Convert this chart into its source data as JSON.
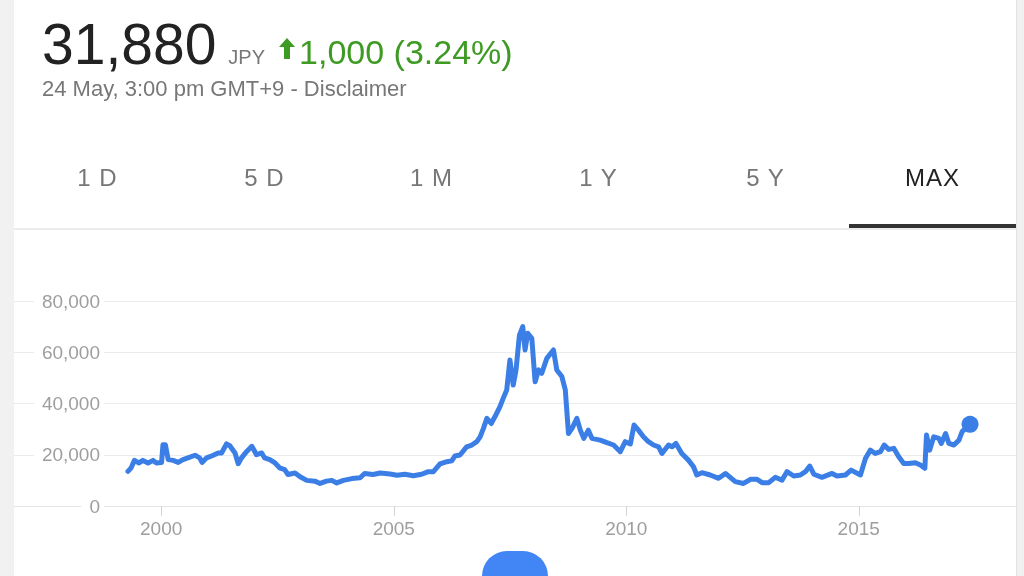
{
  "chart_data": {
    "type": "line",
    "title": "31,880",
    "subtitle": "24 May, 3:00 pm GMT+9 - Disclaimer",
    "annotations": [
      "JPY",
      "1,000 (3.24%)",
      "1 D",
      "5 D",
      "1 M",
      "1 Y",
      "5 Y",
      "MAX"
    ],
    "xlim": [
      "1996-11-01",
      "2018-05-20"
    ],
    "xticks": [
      "2000",
      "2005",
      "2010",
      "2015"
    ],
    "ylim": [
      0,
      80000
    ],
    "yticks": [
      0,
      {
        "value": 20000,
        "label": "20,000"
      },
      {
        "value": 40000,
        "label": "40,000"
      },
      {
        "value": 60000,
        "label": "60,000"
      },
      {
        "value": 80000,
        "label": "80,000"
      }
    ],
    "grid": "y",
    "series": [
      {
        "color": "#3b7fe6",
        "x": [
          "1999-04-15",
          "1999-05-10",
          "1999-06-05",
          "1999-07-11",
          "1999-08-10",
          "1999-09-20",
          "1999-10-29",
          "1999-11-25",
          "2000-01-04",
          "2000-01-15",
          "2000-02-03",
          "2000-02-25",
          "2000-04-04",
          "2000-05-14",
          "2000-06-20",
          "2000-07-29",
          "2000-09-23",
          "2000-10-29",
          "2000-11-17",
          "2000-12-23",
          "2001-02-14",
          "2001-03-23",
          "2001-04-19",
          "2001-05-28",
          "2001-06-23",
          "2001-08-03",
          "2001-08-28",
          "2001-09-23",
          "2001-11-03",
          "2001-12-13",
          "2002-01-19",
          "2002-02-28",
          "2002-03-23",
          "2002-05-03",
          "2002-06-13",
          "2002-07-19",
          "2002-08-28",
          "2002-09-23",
          "2002-11-17",
          "2002-12-27",
          "2003-02-17",
          "2003-04-22",
          "2003-06-02",
          "2003-07-22",
          "2003-09-02",
          "2003-10-11",
          "2003-12-02",
          "2004-02-07",
          "2004-04-11",
          "2004-05-17",
          "2004-07-22",
          "2004-09-16",
          "2004-12-02",
          "2005-01-26",
          "2005-03-29",
          "2005-06-03",
          "2005-08-08",
          "2005-09-29",
          "2005-11-08",
          "2005-12-30",
          "2006-02-22",
          "2006-04-01",
          "2006-04-26",
          "2006-06-05",
          "2006-07-27",
          "2006-09-06",
          "2006-10-15",
          "2006-11-10",
          "2006-12-06",
          "2007-01-02",
          "2007-02-05",
          "2007-03-07",
          "2007-04-15",
          "2007-05-10",
          "2007-06-07",
          "2007-07-02",
          "2007-07-28",
          "2007-08-19",
          "2007-09-15",
          "2007-10-11",
          "2007-10-29",
          "2007-11-19",
          "2007-12-21",
          "2008-01-16",
          "2008-02-12",
          "2008-03-08",
          "2008-04-17",
          "2008-06-08",
          "2008-07-04",
          "2008-08-13",
          "2008-09-09",
          "2008-10-04",
          "2008-11-01",
          "2008-12-09",
          "2009-01-05",
          "2009-02-01",
          "2009-03-09",
          "2009-04-06",
          "2009-06-10",
          "2009-08-02",
          "2009-09-23",
          "2009-11-15",
          "2009-12-24",
          "2010-02-02",
          "2010-03-03",
          "2010-04-07",
          "2010-05-16",
          "2010-06-24",
          "2010-08-03",
          "2010-09-12",
          "2010-10-08",
          "2010-11-29",
          "2010-12-26",
          "2011-01-26",
          "2011-03-13",
          "2011-05-04",
          "2011-06-13",
          "2011-07-09",
          "2011-08-18",
          "2011-10-22",
          "2011-12-27",
          "2012-02-19",
          "2012-05-06",
          "2012-07-10",
          "2012-09-02",
          "2012-10-24",
          "2012-12-03",
          "2013-01-24",
          "2013-03-16",
          "2013-05-08",
          "2013-06-16",
          "2013-08-08",
          "2013-09-29",
          "2013-11-08",
          "2013-12-12",
          "2014-01-13",
          "2014-03-18",
          "2014-06-05",
          "2014-07-14",
          "2014-09-18",
          "2014-11-02",
          "2015-01-14",
          "2015-02-23",
          "2015-04-02",
          "2015-05-11",
          "2015-06-20",
          "2015-07-20",
          "2015-08-24",
          "2015-10-03",
          "2015-11-11",
          "2015-12-20",
          "2016-01-29",
          "2016-03-21",
          "2016-04-29",
          "2016-06-03",
          "2016-06-16",
          "2016-07-11",
          "2016-08-12",
          "2016-09-21",
          "2016-10-10",
          "2016-11-13",
          "2016-12-09",
          "2017-01-17",
          "2017-02-26",
          "2017-03-23",
          "2017-05-24"
        ],
        "values": [
          13500,
          14900,
          17800,
          16800,
          17800,
          16800,
          17800,
          16800,
          17000,
          23900,
          23900,
          18100,
          17800,
          17000,
          18100,
          18800,
          19800,
          18800,
          17000,
          18800,
          19800,
          20700,
          20700,
          24200,
          23500,
          20700,
          16500,
          18800,
          21300,
          23300,
          20000,
          20700,
          18800,
          18100,
          16800,
          14900,
          14200,
          12300,
          12900,
          11400,
          10000,
          9700,
          8800,
          9700,
          10000,
          9000,
          10000,
          10700,
          11000,
          12700,
          12300,
          12900,
          12500,
          12000,
          12400,
          11800,
          12400,
          13400,
          13400,
          16400,
          17300,
          17600,
          19500,
          19900,
          23100,
          23800,
          25100,
          27000,
          30300,
          34200,
          32200,
          34900,
          38800,
          42000,
          45300,
          57000,
          47200,
          53100,
          66700,
          70000,
          60900,
          67400,
          65400,
          48500,
          53100,
          51800,
          57600,
          60900,
          53100,
          50500,
          45300,
          28300,
          30300,
          34200,
          29600,
          26400,
          29600,
          26400,
          25700,
          24700,
          23800,
          21200,
          25100,
          24200,
          31600,
          29600,
          27000,
          25100,
          23800,
          23100,
          20500,
          23800,
          23100,
          24400,
          20500,
          17900,
          15300,
          12100,
          13000,
          12100,
          10800,
          12700,
          9500,
          8800,
          10400,
          10400,
          9100,
          9100,
          11200,
          10100,
          13400,
          11700,
          12100,
          13400,
          15600,
          12400,
          11200,
          12700,
          11700,
          12100,
          14000,
          12100,
          18600,
          21800,
          20500,
          21200,
          23800,
          22100,
          22500,
          19200,
          16600,
          16600,
          16900,
          16000,
          14700,
          27700,
          21800,
          27000,
          26400,
          24400,
          28300,
          24400,
          23800,
          25700,
          29000,
          31880
        ]
      },
      {
        "type": "scatter",
        "marker": "circle",
        "color": "#3b7fe6",
        "x": [
          "2017-05-24"
        ],
        "values": [
          31880
        ]
      }
    ]
  }
}
